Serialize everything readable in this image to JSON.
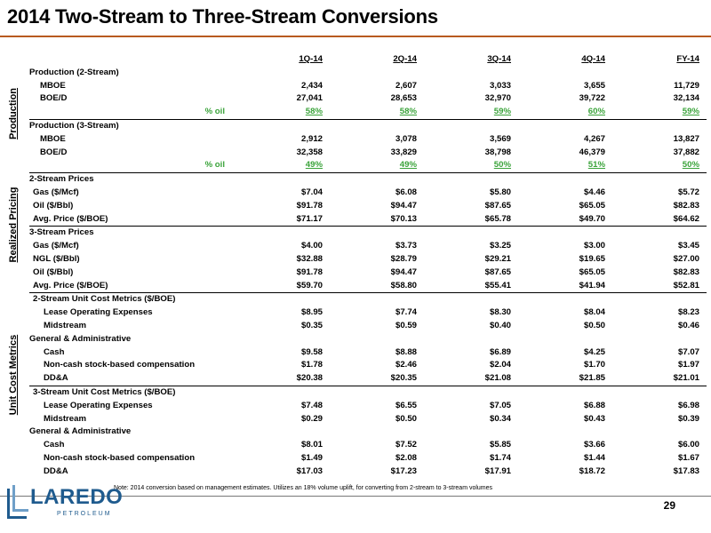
{
  "title": "2014 Two-Stream to Three-Stream Conversions",
  "columns": [
    "1Q-14",
    "2Q-14",
    "3Q-14",
    "4Q-14",
    "FY-14"
  ],
  "sections": {
    "production": "Production",
    "pricing": "Realized Pricing",
    "unit_cost": "Unit Cost Metrics"
  },
  "rows": [
    {
      "label": "Production (2-Stream)",
      "indent": 0,
      "values": []
    },
    {
      "label": "MBOE",
      "indent": 2,
      "values": [
        "2,434",
        "2,607",
        "3,033",
        "3,655",
        "11,729"
      ]
    },
    {
      "label": "BOE/D",
      "indent": 2,
      "values": [
        "27,041",
        "28,653",
        "32,970",
        "39,722",
        "32,134"
      ]
    },
    {
      "label": "% oil",
      "indent": 0,
      "type": "oil",
      "values": [
        "58%",
        "58%",
        "59%",
        "60%",
        "59%"
      ]
    },
    {
      "label": "Production (3-Stream)",
      "indent": 0,
      "sep": "sub",
      "values": []
    },
    {
      "label": "MBOE",
      "indent": 2,
      "values": [
        "2,912",
        "3,078",
        "3,569",
        "4,267",
        "13,827"
      ]
    },
    {
      "label": "BOE/D",
      "indent": 2,
      "values": [
        "32,358",
        "33,829",
        "38,798",
        "46,379",
        "37,882"
      ]
    },
    {
      "label": "% oil",
      "indent": 0,
      "type": "oil",
      "values": [
        "49%",
        "49%",
        "50%",
        "51%",
        "50%"
      ]
    },
    {
      "label": "2-Stream Prices",
      "indent": 0,
      "sep": "section",
      "values": []
    },
    {
      "label": "Gas ($/Mcf)",
      "indent": 1,
      "values": [
        "$7.04",
        "$6.08",
        "$5.80",
        "$4.46",
        "$5.72"
      ]
    },
    {
      "label": "Oil ($/Bbl)",
      "indent": 1,
      "values": [
        "$91.78",
        "$94.47",
        "$87.65",
        "$65.05",
        "$82.83"
      ]
    },
    {
      "label": "Avg. Price ($/BOE)",
      "indent": 1,
      "values": [
        "$71.17",
        "$70.13",
        "$65.78",
        "$49.70",
        "$64.62"
      ]
    },
    {
      "label": "3-Stream Prices",
      "indent": 0,
      "sep": "sub",
      "values": []
    },
    {
      "label": "Gas ($/Mcf)",
      "indent": 1,
      "values": [
        "$4.00",
        "$3.73",
        "$3.25",
        "$3.00",
        "$3.45"
      ]
    },
    {
      "label": "NGL ($/Bbl)",
      "indent": 1,
      "values": [
        "$32.88",
        "$28.79",
        "$29.21",
        "$19.65",
        "$27.00"
      ]
    },
    {
      "label": "Oil ($/Bbl)",
      "indent": 1,
      "values": [
        "$91.78",
        "$94.47",
        "$87.65",
        "$65.05",
        "$82.83"
      ]
    },
    {
      "label": "Avg. Price ($/BOE)",
      "indent": 1,
      "values": [
        "$59.70",
        "$58.80",
        "$55.41",
        "$41.94",
        "$52.81"
      ]
    },
    {
      "label": "2-Stream Unit Cost Metrics ($/BOE)",
      "indent": 1,
      "sep": "section",
      "values": []
    },
    {
      "label": "Lease Operating Expenses",
      "indent": 3,
      "values": [
        "$8.95",
        "$7.74",
        "$8.30",
        "$8.04",
        "$8.23"
      ]
    },
    {
      "label": "Midstream",
      "indent": 3,
      "values": [
        "$0.35",
        "$0.59",
        "$0.40",
        "$0.50",
        "$0.46"
      ]
    },
    {
      "label": "General & Administrative",
      "indent": 0,
      "values": []
    },
    {
      "label": "Cash",
      "indent": 3,
      "values": [
        "$9.58",
        "$8.88",
        "$6.89",
        "$4.25",
        "$7.07"
      ]
    },
    {
      "label": "Non-cash stock-based compensation",
      "indent": 3,
      "values": [
        "$1.78",
        "$2.46",
        "$2.04",
        "$1.70",
        "$1.97"
      ]
    },
    {
      "label": "DD&A",
      "indent": 3,
      "values": [
        "$20.38",
        "$20.35",
        "$21.08",
        "$21.85",
        "$21.01"
      ]
    },
    {
      "label": "3-Stream Unit Cost Metrics ($/BOE)",
      "indent": 1,
      "sep": "sub",
      "values": []
    },
    {
      "label": "Lease Operating Expenses",
      "indent": 3,
      "values": [
        "$7.48",
        "$6.55",
        "$7.05",
        "$6.88",
        "$6.98"
      ]
    },
    {
      "label": "Midstream",
      "indent": 3,
      "values": [
        "$0.29",
        "$0.50",
        "$0.34",
        "$0.43",
        "$0.39"
      ]
    },
    {
      "label": "General & Administrative",
      "indent": 0,
      "values": []
    },
    {
      "label": "Cash",
      "indent": 3,
      "values": [
        "$8.01",
        "$7.52",
        "$5.85",
        "$3.66",
        "$6.00"
      ]
    },
    {
      "label": "Non-cash stock-based compensation",
      "indent": 3,
      "values": [
        "$1.49",
        "$2.08",
        "$1.74",
        "$1.44",
        "$1.67"
      ]
    },
    {
      "label": "DD&A",
      "indent": 3,
      "values": [
        "$17.03",
        "$17.23",
        "$17.91",
        "$18.72",
        "$17.83"
      ]
    }
  ],
  "note": "Note: 2014 conversion based on management estimates. Utilizes an 18% volume uplift, for converting from 2-stream to 3-stream volumes",
  "logo": {
    "word": "LAREDO",
    "sub": "PETROLEUM"
  },
  "page_number": "29",
  "colors": {
    "accent_rule": "#b85a1f",
    "oil_green": "#3aa33a",
    "logo_blue": "#1f5b8e"
  }
}
